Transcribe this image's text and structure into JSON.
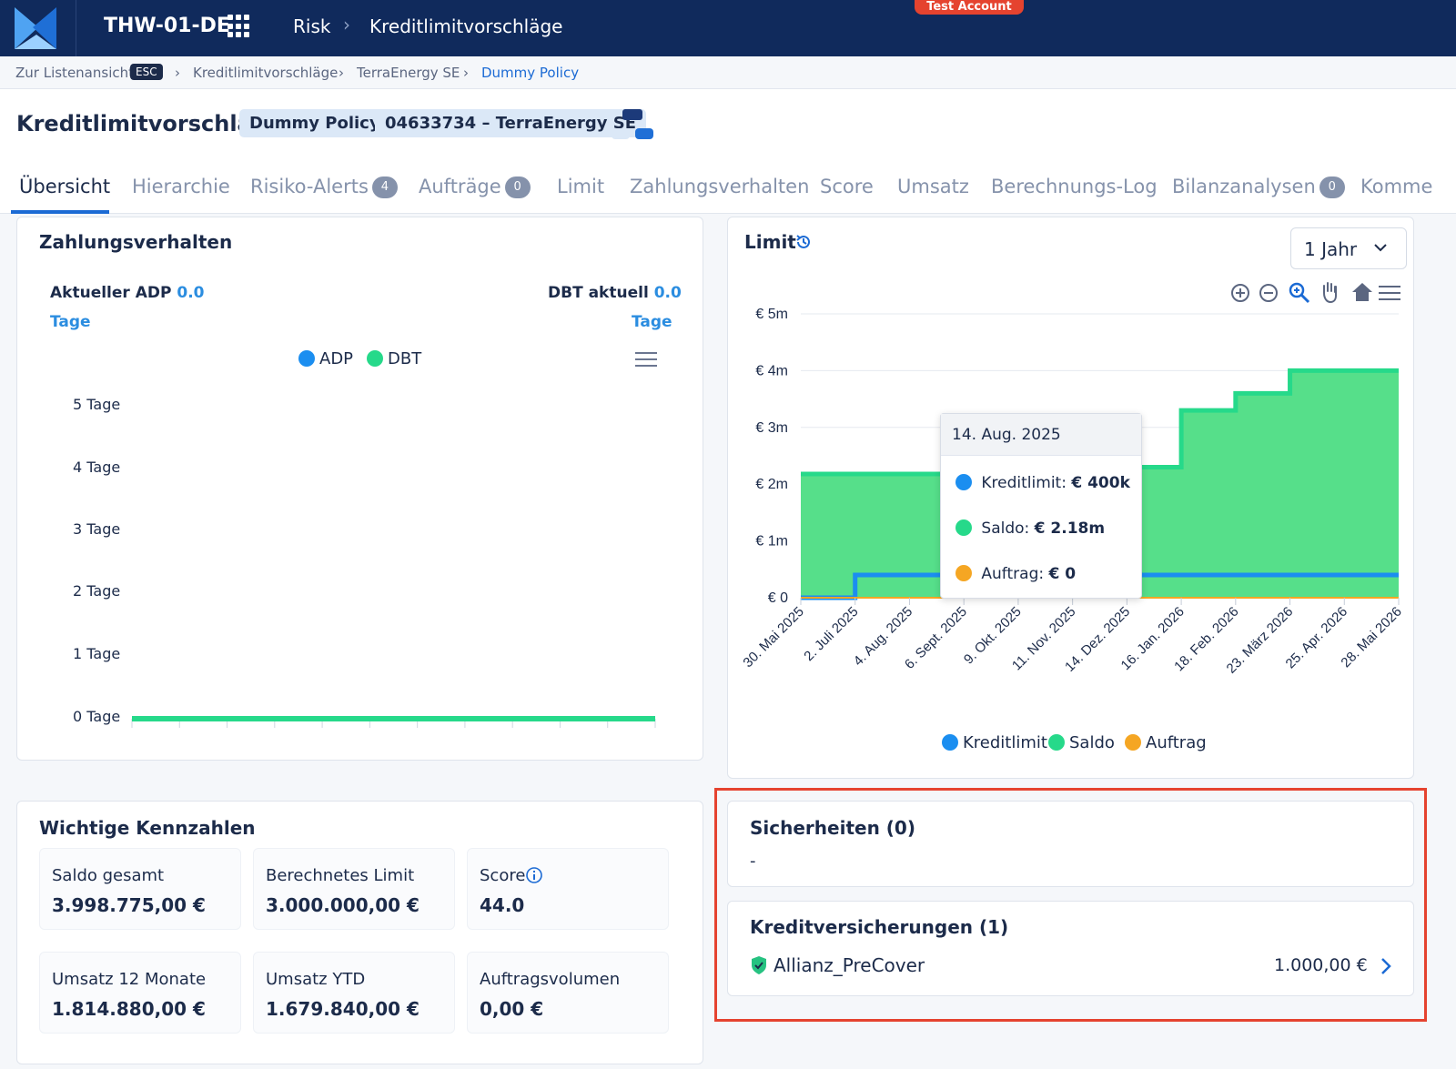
{
  "topbar": {
    "tenant": "THW-01-DE",
    "crumbs": [
      "Risk",
      "Kreditlimitvorschläge"
    ],
    "test_badge": "Test Account"
  },
  "breadcrumb": {
    "back": "Zur Listenansicht",
    "esc": "ESC",
    "items": [
      "Kreditlimitvorschläge",
      "TerraEnergy SE",
      "Dummy Policy"
    ]
  },
  "header": {
    "title": "Kreditlimitvorschlag",
    "chips": [
      "Dummy Policy",
      "04633734 – TerraEnergy SE"
    ]
  },
  "tabs": [
    {
      "label": "Übersicht",
      "count": ""
    },
    {
      "label": "Hierarchie",
      "count": ""
    },
    {
      "label": "Risiko-Alerts",
      "count": "4"
    },
    {
      "label": "Aufträge",
      "count": "0"
    },
    {
      "label": "Limit",
      "count": ""
    },
    {
      "label": "Zahlungsverhalten",
      "count": ""
    },
    {
      "label": "Score",
      "count": ""
    },
    {
      "label": "Umsatz",
      "count": ""
    },
    {
      "label": "Berechnungs-Log",
      "count": ""
    },
    {
      "label": "Bilanzanalysen",
      "count": "0"
    },
    {
      "label": "Komme",
      "count": ""
    }
  ],
  "payment": {
    "title": "Zahlungsverhalten",
    "adp_label": "Aktueller ADP",
    "adp_value": "0.0",
    "dbt_label": "DBT aktuell",
    "dbt_value": "0.0",
    "unit": "Tage",
    "legend": [
      "ADP",
      "DBT"
    ],
    "yticks": [
      "5 Tage",
      "4 Tage",
      "3 Tage",
      "2 Tage",
      "1 Tage",
      "0 Tage"
    ]
  },
  "limit": {
    "title": "Limit",
    "range_select": "1 Jahr",
    "legend": [
      "Kreditlimit",
      "Saldo",
      "Auftrag"
    ],
    "tooltip": {
      "date": "14. Aug. 2025",
      "rows": [
        {
          "label": "Kreditlimit:",
          "value": "€ 400k"
        },
        {
          "label": "Saldo:",
          "value": "€ 2.18m"
        },
        {
          "label": "Auftrag:",
          "value": "€ 0"
        }
      ]
    }
  },
  "chart_data": [
    {
      "type": "line",
      "title": "Zahlungsverhalten",
      "series": [
        {
          "name": "ADP",
          "values": [
            0,
            0,
            0,
            0,
            0,
            0,
            0,
            0,
            0,
            0,
            0,
            0
          ]
        },
        {
          "name": "DBT",
          "values": [
            0,
            0,
            0,
            0,
            0,
            0,
            0,
            0,
            0,
            0,
            0,
            0
          ]
        }
      ],
      "ylabel": "",
      "ylim": [
        0,
        5
      ],
      "yticks": [
        "0 Tage",
        "1 Tage",
        "2 Tage",
        "3 Tage",
        "4 Tage",
        "5 Tage"
      ],
      "legend": "top-center"
    },
    {
      "type": "area",
      "title": "Limit",
      "x": [
        "30. Mai 2025",
        "2. Juli 2025",
        "4. Aug. 2025",
        "6. Sept. 2025",
        "9. Okt. 2025",
        "11. Nov. 2025",
        "14. Dez. 2025",
        "16. Jan. 2026",
        "18. Feb. 2026",
        "23. März 2026",
        "25. Apr. 2026",
        "28. Mai 2026"
      ],
      "series": [
        {
          "name": "Kreditlimit",
          "values": [
            0,
            400000,
            400000,
            400000,
            400000,
            400000,
            400000,
            400000,
            400000,
            400000,
            400000,
            400000
          ]
        },
        {
          "name": "Saldo",
          "values": [
            2180000,
            2180000,
            2180000,
            2180000,
            2180000,
            2180000,
            2300000,
            3300000,
            3600000,
            4000000,
            4000000,
            4000000
          ]
        },
        {
          "name": "Auftrag",
          "values": [
            0,
            0,
            0,
            0,
            0,
            0,
            0,
            0,
            0,
            0,
            0,
            0
          ]
        }
      ],
      "yticks": [
        "€ 0",
        "€ 1m",
        "€ 2m",
        "€ 3m",
        "€ 4m",
        "€ 5m"
      ],
      "ylim": [
        0,
        5000000
      ],
      "legend": "bottom-center"
    }
  ],
  "kpis": {
    "title": "Wichtige Kennzahlen",
    "items": [
      {
        "label": "Saldo gesamt",
        "value": "3.998.775,00 €"
      },
      {
        "label": "Berechnetes Limit",
        "value": "3.000.000,00 €"
      },
      {
        "label": "Score",
        "value": "44.0"
      },
      {
        "label": "Umsatz 12 Monate",
        "value": "1.814.880,00 €"
      },
      {
        "label": "Umsatz YTD",
        "value": "1.679.840,00 €"
      },
      {
        "label": "Auftragsvolumen",
        "value": "0,00 €"
      }
    ]
  },
  "securities": {
    "title": "Sicherheiten (0)",
    "empty": "-"
  },
  "insurance": {
    "title": "Kreditversicherungen (1)",
    "items": [
      {
        "name": "Allianz_PreCover",
        "amount": "1.000,00 €"
      }
    ]
  },
  "colors": {
    "navy": "#102a5c",
    "kreditlimit": "#1b8ef0",
    "saldo": "#26d98a",
    "auftrag": "#f5a623",
    "highlight": "#e5432f"
  }
}
